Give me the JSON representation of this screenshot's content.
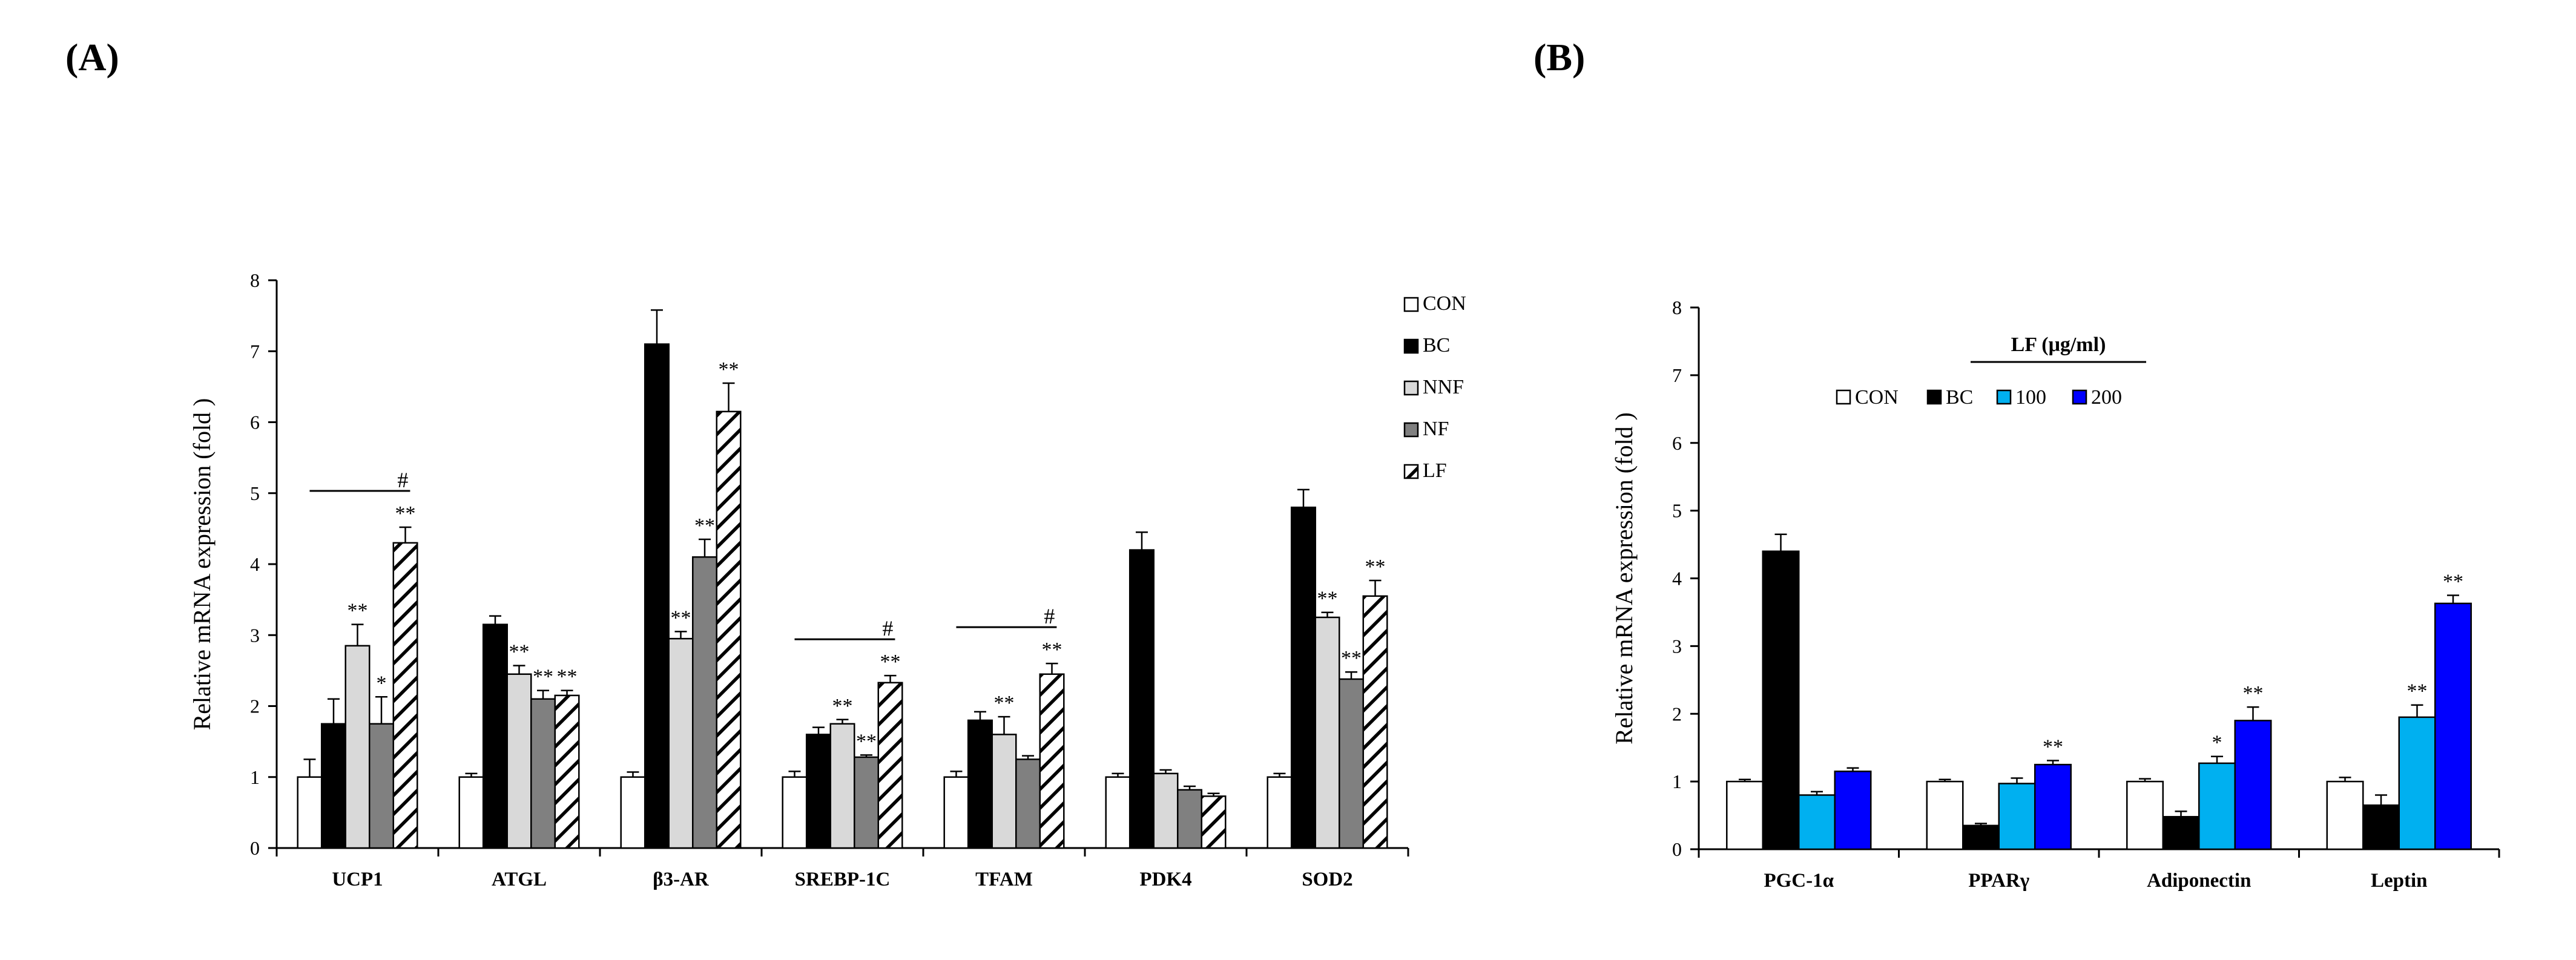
{
  "panel_labels": {
    "a": "(A)",
    "b": "(B)"
  },
  "chart_data": [
    {
      "type": "bar",
      "panel": "(A)",
      "title": "",
      "xlabel": "",
      "ylabel": "Relative  mRNA expression (fold )",
      "ylim": [
        0,
        8
      ],
      "yticks": [
        "0",
        "1",
        "2",
        "3",
        "4",
        "5",
        "6",
        "7",
        "8"
      ],
      "legend_position": "right",
      "categories": [
        "UCP1",
        "ATGL",
        "β3-AR",
        "SREBP-1C",
        "TFAM",
        "PDK4",
        "SOD2"
      ],
      "series": [
        {
          "name": "CON",
          "color": "#ffffff",
          "pattern": "none",
          "values": [
            1.0,
            1.0,
            1.0,
            1.0,
            1.0,
            1.0,
            1.0
          ],
          "errors": [
            0.25,
            0.05,
            0.07,
            0.08,
            0.08,
            0.05,
            0.05
          ],
          "marks": [
            "",
            "",
            "",
            "",
            "",
            "",
            ""
          ]
        },
        {
          "name": "BC",
          "color": "#000000",
          "pattern": "none",
          "values": [
            1.75,
            3.15,
            7.1,
            1.6,
            1.8,
            4.2,
            4.8
          ],
          "errors": [
            0.35,
            0.12,
            0.48,
            0.1,
            0.12,
            0.25,
            0.25
          ],
          "marks": [
            "",
            "",
            "",
            "",
            "",
            "",
            ""
          ]
        },
        {
          "name": "NNF",
          "color": "#d9d9d9",
          "pattern": "none",
          "values": [
            2.85,
            2.45,
            2.95,
            1.75,
            1.6,
            1.05,
            3.25
          ],
          "errors": [
            0.3,
            0.12,
            0.1,
            0.06,
            0.25,
            0.05,
            0.07
          ],
          "marks": [
            "**",
            "**",
            "**",
            "**",
            "**",
            "",
            "**"
          ]
        },
        {
          "name": "NF",
          "color": "#808080",
          "pattern": "none",
          "values": [
            1.75,
            2.1,
            4.1,
            1.28,
            1.25,
            0.82,
            2.38
          ],
          "errors": [
            0.38,
            0.12,
            0.25,
            0.03,
            0.05,
            0.05,
            0.1
          ],
          "marks": [
            "*",
            "**",
            "**",
            "**",
            "",
            "",
            "**"
          ]
        },
        {
          "name": "LF",
          "color": "#ffffff",
          "pattern": "hatch",
          "values": [
            4.3,
            2.15,
            6.15,
            2.33,
            2.45,
            0.73,
            3.55
          ],
          "errors": [
            0.22,
            0.07,
            0.4,
            0.1,
            0.15,
            0.04,
            0.22
          ],
          "marks": [
            "**",
            "**",
            "**",
            "**",
            "**",
            "",
            "**"
          ]
        }
      ],
      "significance_bars": [
        {
          "category": "UCP1",
          "label": "#"
        },
        {
          "category": "SREBP-1C",
          "label": "#"
        },
        {
          "category": "TFAM",
          "label": "#"
        }
      ]
    },
    {
      "type": "bar",
      "panel": "(B)",
      "title": "",
      "xlabel": "",
      "ylabel": "Relative  mRNA expression (fold )",
      "ylim": [
        0,
        8
      ],
      "yticks": [
        "0",
        "1",
        "2",
        "3",
        "4",
        "5",
        "6",
        "7",
        "8"
      ],
      "legend_title": "LF (μg/ml)",
      "legend_position": "top-center",
      "categories": [
        "PGC-1α",
        "PPARγ",
        "Adiponectin",
        "Leptin"
      ],
      "series": [
        {
          "name": "CON",
          "color": "#ffffff",
          "values": [
            1.0,
            1.0,
            1.0,
            1.0
          ],
          "errors": [
            0.03,
            0.03,
            0.04,
            0.06
          ],
          "marks": [
            "",
            "",
            "",
            ""
          ]
        },
        {
          "name": "BC",
          "color": "#000000",
          "values": [
            4.4,
            0.35,
            0.48,
            0.65
          ],
          "errors": [
            0.25,
            0.03,
            0.08,
            0.15
          ],
          "marks": [
            "",
            "",
            "",
            ""
          ]
        },
        {
          "name": "100",
          "color": "#00b0f0",
          "values": [
            0.8,
            0.97,
            1.27,
            1.95
          ],
          "errors": [
            0.05,
            0.08,
            0.1,
            0.18
          ],
          "marks": [
            "",
            "",
            "*",
            "**"
          ]
        },
        {
          "name": "200",
          "color": "#0000ff",
          "values": [
            1.15,
            1.25,
            1.9,
            3.63
          ],
          "errors": [
            0.05,
            0.06,
            0.2,
            0.12
          ],
          "marks": [
            "",
            "**",
            "**",
            "**"
          ]
        }
      ]
    }
  ]
}
